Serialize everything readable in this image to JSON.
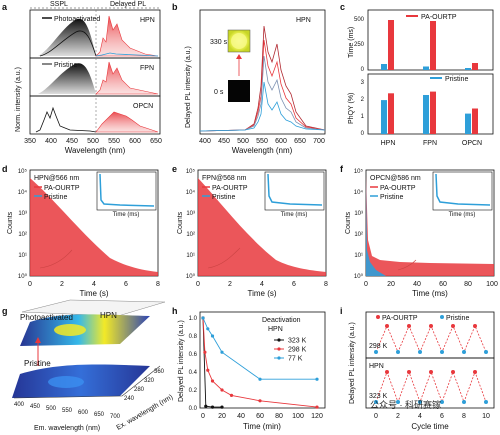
{
  "panels": {
    "a": {
      "label": "a",
      "top_labels": [
        "SSPL",
        "Delayed PL"
      ],
      "rows": [
        "HPN",
        "FPN",
        "OPCN"
      ],
      "legend": [
        "Photoactivated",
        "Pristine"
      ],
      "ylabel": "Norm. intensity (a.u.)",
      "xlabel": "Wavelength (nm)",
      "xticks": [
        "350",
        "400",
        "450",
        "500",
        "550",
        "600",
        "650"
      ]
    },
    "b": {
      "label": "b",
      "title": "HPN",
      "ylabel": "Delayed PL intensity (a.u.)",
      "xlabel": "Wavelength (nm)",
      "xticks": [
        "400",
        "450",
        "500",
        "550",
        "600",
        "650",
        "700"
      ],
      "inset_labels": [
        "330 s",
        "0 s"
      ]
    },
    "c": {
      "label": "c",
      "legend_top": "PA-OURTP",
      "legend_bottom": "Pristine",
      "ylabel_top": "Time (ms)",
      "ylabel_bottom": "PhQY (%)",
      "yticks_top": [
        "0",
        "250",
        "500"
      ],
      "yticks_bottom": [
        "0",
        "1",
        "2",
        "3"
      ],
      "categories": [
        "HPN",
        "FPN",
        "OPCN"
      ]
    },
    "d": {
      "label": "d",
      "title": "HPN@566 nm",
      "legend": [
        "PA-OURTP",
        "Pristine"
      ],
      "ylabel": "Counts",
      "xlabel": "Time (s)",
      "xticks": [
        "0",
        "2",
        "4",
        "6",
        "8"
      ],
      "yticks": [
        "10⁰",
        "10¹",
        "10²",
        "10³",
        "10⁴",
        "10⁵"
      ],
      "inset_xlabel": "Time (ms)",
      "inset_xticks": [
        "0",
        "10",
        "20"
      ]
    },
    "e": {
      "label": "e",
      "title": "FPN@568 nm",
      "legend": [
        "PA-OURTP",
        "Pristine"
      ],
      "ylabel": "Counts",
      "xlabel": "Time (s)",
      "xticks": [
        "0",
        "2",
        "4",
        "6",
        "8"
      ],
      "yticks": [
        "10⁰",
        "10¹",
        "10²",
        "10³",
        "10⁴",
        "10⁵"
      ],
      "inset_xlabel": "Time (ms)",
      "inset_xticks": [
        "0",
        "10",
        "20"
      ]
    },
    "f": {
      "label": "f",
      "title": "OPCN@586 nm",
      "legend": [
        "PA-OURTP",
        "Pristine"
      ],
      "ylabel": "Counts",
      "xlabel": "Time (ms)",
      "xticks": [
        "0",
        "20",
        "40",
        "60",
        "80",
        "100"
      ],
      "yticks": [
        "10⁰",
        "10¹",
        "10²",
        "10³",
        "10⁴",
        "10⁵"
      ],
      "inset_xlabel": "Time (ms)",
      "inset_xticks": [
        "0",
        "10",
        "20"
      ]
    },
    "g": {
      "label": "g",
      "top_label": "Photoactivated",
      "top_title": "HPN",
      "bottom_label": "Pristine",
      "em_label": "Em. wavelength (nm)",
      "ex_label": "Ex. wavelength (nm)",
      "em_ticks": [
        "400",
        "450",
        "500",
        "550",
        "600",
        "650",
        "700"
      ],
      "ex_ticks": [
        "240",
        "280",
        "320",
        "360"
      ]
    },
    "h": {
      "label": "h",
      "legend_title": "Deactivation",
      "legend_subtitle": "HPN",
      "ylabel": "Delayed PL intensity (a.u.)",
      "xlabel": "Time (min)",
      "xticks": [
        "0",
        "20",
        "40",
        "60",
        "80",
        "100",
        "120"
      ],
      "yticks": [
        "0.0",
        "0.2",
        "0.4",
        "0.6",
        "0.8",
        "1.0"
      ]
    },
    "i": {
      "label": "i",
      "legend": [
        "PA-OURTP",
        "Pristine"
      ],
      "row_labels": [
        "298 K",
        "HPN",
        "323 K"
      ],
      "ylabel": "Delayed PL intensity (a.u.)",
      "xlabel": "Cycle time",
      "xticks": [
        "0",
        "2",
        "4",
        "6",
        "8",
        "10"
      ]
    }
  },
  "watermark": "公众号 · 科研赛镓",
  "colors": {
    "red": "#e8383d",
    "blue": "#2e9fd9",
    "black": "#111111",
    "grey": "#9a9a9a"
  },
  "chart_data": [
    {
      "panel": "c",
      "type": "bar",
      "categories": [
        "HPN",
        "FPN",
        "OPCN"
      ],
      "series": [
        {
          "name": "PA-OURTP",
          "metric": "Time (ms)",
          "values": [
            500,
            490,
            70
          ]
        },
        {
          "name": "Pristine",
          "metric": "Time (ms)",
          "values": [
            60,
            35,
            20
          ]
        },
        {
          "name": "PA-OURTP",
          "metric": "PhQY (%)",
          "values": [
            2.4,
            2.5,
            1.5
          ]
        },
        {
          "name": "Pristine",
          "metric": "PhQY (%)",
          "values": [
            2.0,
            2.3,
            1.2
          ]
        }
      ]
    },
    {
      "panel": "h",
      "type": "line",
      "xlabel": "Time (min)",
      "ylabel": "Delayed PL intensity (a.u.)",
      "xlim": [
        0,
        125
      ],
      "ylim": [
        0,
        1.05
      ],
      "series": [
        {
          "name": "323 K",
          "x": [
            0,
            3,
            10,
            20
          ],
          "y": [
            1.0,
            0.02,
            0.01,
            0.01
          ]
        },
        {
          "name": "298 K",
          "x": [
            0,
            2,
            5,
            10,
            20,
            30,
            60,
            120
          ],
          "y": [
            1.0,
            0.62,
            0.42,
            0.3,
            0.2,
            0.14,
            0.08,
            0.01
          ]
        },
        {
          "name": "77 K",
          "x": [
            0,
            5,
            10,
            20,
            60,
            120
          ],
          "y": [
            1.0,
            0.88,
            0.8,
            0.62,
            0.32,
            0.32
          ]
        }
      ]
    },
    {
      "panel": "i",
      "type": "line",
      "xlabel": "Cycle time",
      "series": [
        {
          "name": "PA-OURTP 298 K",
          "x": [
            1,
            3,
            5,
            7,
            9
          ],
          "y": [
            1,
            1,
            1,
            1,
            1
          ]
        },
        {
          "name": "Pristine 298 K",
          "x": [
            0,
            2,
            4,
            6,
            8,
            10
          ],
          "y": [
            0,
            0,
            0,
            0,
            0,
            0
          ]
        },
        {
          "name": "PA-OURTP 323 K",
          "x": [
            1,
            3,
            5,
            7,
            9
          ],
          "y": [
            1,
            1,
            1,
            1,
            1
          ]
        },
        {
          "name": "Pristine 323 K",
          "x": [
            0,
            2,
            4,
            6,
            8,
            10
          ],
          "y": [
            0,
            0,
            0,
            0,
            0,
            0
          ]
        }
      ]
    }
  ]
}
